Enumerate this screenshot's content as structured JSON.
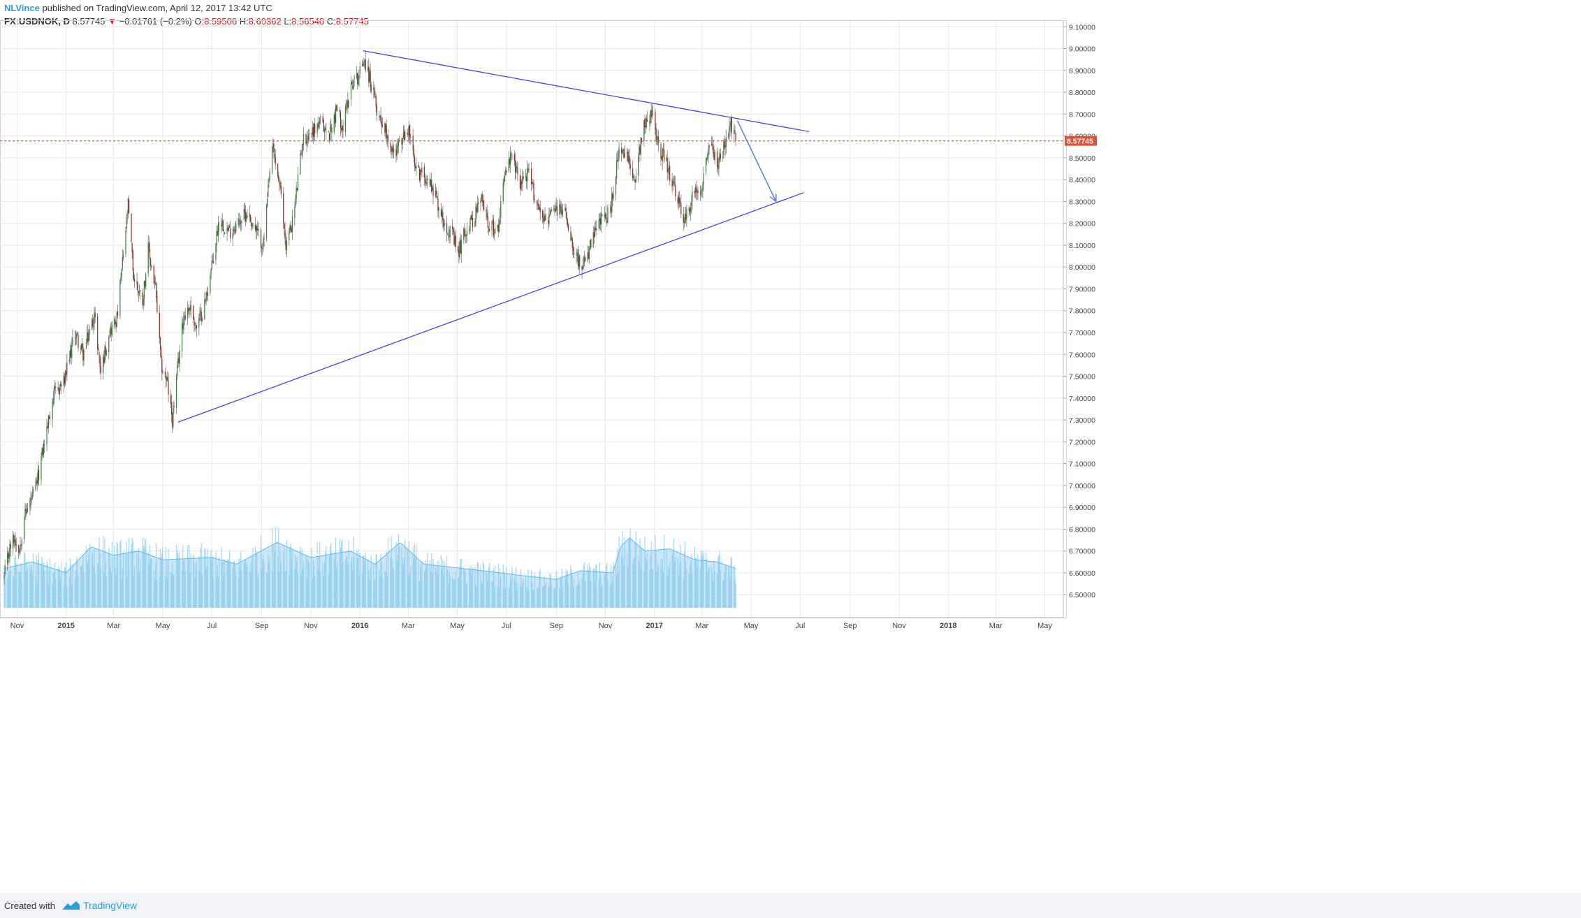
{
  "header": {
    "author": "NLVince",
    "published": "published on TradingView.com, April 12, 2017 13:42 UTC",
    "symbol": "FX:USDNOK, D",
    "last": "8.57745",
    "change_arrow": "▼",
    "change": "−0.01761 (−0.2%)",
    "o_label": "O:",
    "o_value": "8.59506",
    "h_label": "H:",
    "h_value": "8.60362",
    "l_label": "L:",
    "l_value": "8.56540",
    "c_label": "C:",
    "c_value": "8.57745"
  },
  "footer": {
    "created_with": "Created with",
    "brand": "TradingView"
  },
  "colors": {
    "up": "#3b7a3b",
    "down": "#8b2e22",
    "wick": "#777777",
    "volume": "#5bb8e6",
    "volume_ma": "#8fcdf0",
    "trendline": "#4444dd",
    "arrow": "#5b7fd6",
    "price_line": "#e0552a",
    "grid": "#e8e8e8"
  },
  "chart_data": {
    "type": "candlestick",
    "title": "",
    "ylim": [
      6.44,
      9.12
    ],
    "y_ticks": [
      "9.10000",
      "9.00000",
      "8.90000",
      "8.80000",
      "8.70000",
      "8.60000",
      "8.50000",
      "8.40000",
      "8.30000",
      "8.20000",
      "8.10000",
      "8.00000",
      "7.90000",
      "7.80000",
      "7.70000",
      "7.60000",
      "7.50000",
      "7.40000",
      "7.30000",
      "7.20000",
      "7.10000",
      "7.00000",
      "6.90000",
      "6.80000",
      "6.70000",
      "6.60000",
      "6.50000"
    ],
    "x_ticks": [
      {
        "label": "Nov",
        "date": "2014-11-01",
        "bold": false
      },
      {
        "label": "2015",
        "date": "2015-01-01",
        "bold": true
      },
      {
        "label": "Mar",
        "date": "2015-03-01",
        "bold": false
      },
      {
        "label": "May",
        "date": "2015-05-01",
        "bold": false
      },
      {
        "label": "Jul",
        "date": "2015-07-01",
        "bold": false
      },
      {
        "label": "Sep",
        "date": "2015-09-01",
        "bold": false
      },
      {
        "label": "Nov",
        "date": "2015-11-01",
        "bold": false
      },
      {
        "label": "2016",
        "date": "2016-01-01",
        "bold": true
      },
      {
        "label": "Mar",
        "date": "2016-03-01",
        "bold": false
      },
      {
        "label": "May",
        "date": "2016-05-01",
        "bold": false
      },
      {
        "label": "Jul",
        "date": "2016-07-01",
        "bold": false
      },
      {
        "label": "Sep",
        "date": "2016-09-01",
        "bold": false
      },
      {
        "label": "Nov",
        "date": "2016-11-01",
        "bold": false
      },
      {
        "label": "2017",
        "date": "2017-01-01",
        "bold": true
      },
      {
        "label": "Mar",
        "date": "2017-03-01",
        "bold": false
      },
      {
        "label": "May",
        "date": "2017-05-01",
        "bold": false
      },
      {
        "label": "Jul",
        "date": "2017-07-01",
        "bold": false
      },
      {
        "label": "Sep",
        "date": "2017-09-01",
        "bold": false
      },
      {
        "label": "Nov",
        "date": "2017-11-01",
        "bold": false
      },
      {
        "label": "2018",
        "date": "2018-01-01",
        "bold": true
      },
      {
        "label": "Mar",
        "date": "2018-03-01",
        "bold": false
      },
      {
        "label": "May",
        "date": "2018-05-01",
        "bold": false
      }
    ],
    "price_path": [
      [
        "2014-10-16",
        6.58
      ],
      [
        "2014-10-22",
        6.7
      ],
      [
        "2014-10-28",
        6.76
      ],
      [
        "2014-11-04",
        6.71
      ],
      [
        "2014-11-10",
        6.86
      ],
      [
        "2014-11-24",
        6.98
      ],
      [
        "2014-12-05",
        7.2
      ],
      [
        "2014-12-16",
        7.41
      ],
      [
        "2014-12-30",
        7.48
      ],
      [
        "2015-01-12",
        7.7
      ],
      [
        "2015-01-22",
        7.6
      ],
      [
        "2015-02-05",
        7.78
      ],
      [
        "2015-02-13",
        7.52
      ],
      [
        "2015-02-23",
        7.7
      ],
      [
        "2015-03-05",
        7.76
      ],
      [
        "2015-03-12",
        8.02
      ],
      [
        "2015-03-19",
        8.28
      ],
      [
        "2015-03-26",
        7.95
      ],
      [
        "2015-04-06",
        7.85
      ],
      [
        "2015-04-13",
        8.08
      ],
      [
        "2015-04-22",
        7.9
      ],
      [
        "2015-04-29",
        7.55
      ],
      [
        "2015-05-06",
        7.48
      ],
      [
        "2015-05-13",
        7.3
      ],
      [
        "2015-05-19",
        7.52
      ],
      [
        "2015-05-27",
        7.78
      ],
      [
        "2015-06-04",
        7.82
      ],
      [
        "2015-06-12",
        7.72
      ],
      [
        "2015-06-22",
        7.83
      ],
      [
        "2015-07-02",
        8.02
      ],
      [
        "2015-07-10",
        8.22
      ],
      [
        "2015-07-23",
        8.16
      ],
      [
        "2015-08-04",
        8.21
      ],
      [
        "2015-08-14",
        8.25
      ],
      [
        "2015-08-24",
        8.17
      ],
      [
        "2015-09-03",
        8.1
      ],
      [
        "2015-09-14",
        8.55
      ],
      [
        "2015-09-23",
        8.38
      ],
      [
        "2015-10-01",
        8.1
      ],
      [
        "2015-10-10",
        8.22
      ],
      [
        "2015-10-22",
        8.58
      ],
      [
        "2015-11-02",
        8.62
      ],
      [
        "2015-11-13",
        8.66
      ],
      [
        "2015-11-23",
        8.6
      ],
      [
        "2015-12-03",
        8.72
      ],
      [
        "2015-12-11",
        8.64
      ],
      [
        "2015-12-21",
        8.84
      ],
      [
        "2015-12-31",
        8.88
      ],
      [
        "2016-01-06",
        8.96
      ],
      [
        "2016-01-14",
        8.85
      ],
      [
        "2016-01-22",
        8.72
      ],
      [
        "2016-02-03",
        8.62
      ],
      [
        "2016-02-11",
        8.52
      ],
      [
        "2016-02-22",
        8.58
      ],
      [
        "2016-03-02",
        8.63
      ],
      [
        "2016-03-10",
        8.44
      ],
      [
        "2016-03-22",
        8.42
      ],
      [
        "2016-04-01",
        8.36
      ],
      [
        "2016-04-12",
        8.23
      ],
      [
        "2016-04-25",
        8.14
      ],
      [
        "2016-05-02",
        8.06
      ],
      [
        "2016-05-10",
        8.16
      ],
      [
        "2016-05-19",
        8.21
      ],
      [
        "2016-05-31",
        8.31
      ],
      [
        "2016-06-09",
        8.2
      ],
      [
        "2016-06-20",
        8.16
      ],
      [
        "2016-06-28",
        8.42
      ],
      [
        "2016-07-07",
        8.5
      ],
      [
        "2016-07-18",
        8.39
      ],
      [
        "2016-07-28",
        8.43
      ],
      [
        "2016-08-08",
        8.29
      ],
      [
        "2016-08-19",
        8.21
      ],
      [
        "2016-08-31",
        8.26
      ],
      [
        "2016-09-12",
        8.26
      ],
      [
        "2016-09-22",
        8.1
      ],
      [
        "2016-10-03",
        7.98
      ],
      [
        "2016-10-14",
        8.1
      ],
      [
        "2016-10-25",
        8.21
      ],
      [
        "2016-11-07",
        8.25
      ],
      [
        "2016-11-17",
        8.52
      ],
      [
        "2016-11-28",
        8.5
      ],
      [
        "2016-12-07",
        8.4
      ],
      [
        "2016-12-19",
        8.66
      ],
      [
        "2016-12-29",
        8.7
      ],
      [
        "2017-01-06",
        8.56
      ],
      [
        "2017-01-17",
        8.46
      ],
      [
        "2017-01-30",
        8.3
      ],
      [
        "2017-02-08",
        8.21
      ],
      [
        "2017-02-17",
        8.32
      ],
      [
        "2017-03-01",
        8.38
      ],
      [
        "2017-03-10",
        8.58
      ],
      [
        "2017-03-20",
        8.47
      ],
      [
        "2017-03-29",
        8.55
      ],
      [
        "2017-04-06",
        8.65
      ],
      [
        "2017-04-12",
        8.577
      ]
    ],
    "annotations": {
      "last_price": 8.57745,
      "last_price_label": "8.57745",
      "resistance_line": {
        "from": [
          "2016-01-05",
          8.99
        ],
        "to": [
          "2017-07-12",
          8.62
        ]
      },
      "support_line": {
        "from": [
          "2015-05-20",
          7.29
        ],
        "to": [
          "2017-07-05",
          8.34
        ]
      },
      "projection_arrow": {
        "from": [
          "2017-04-14",
          8.67
        ],
        "to": [
          "2017-06-01",
          8.3
        ]
      }
    },
    "volume": {
      "scale_max": 7.1,
      "scale_base": 6.44,
      "note_levels": [
        [
          "2014-10-16",
          6.62
        ],
        [
          "2014-11-20",
          6.65
        ],
        [
          "2015-01-01",
          6.6
        ],
        [
          "2015-02-01",
          6.72
        ],
        [
          "2015-03-01",
          6.68
        ],
        [
          "2015-04-01",
          6.7
        ],
        [
          "2015-05-01",
          6.66
        ],
        [
          "2015-07-01",
          6.67
        ],
        [
          "2015-08-01",
          6.64
        ],
        [
          "2015-09-20",
          6.74
        ],
        [
          "2015-11-01",
          6.67
        ],
        [
          "2015-12-20",
          6.7
        ],
        [
          "2016-01-20",
          6.64
        ],
        [
          "2016-02-20",
          6.74
        ],
        [
          "2016-03-20",
          6.64
        ],
        [
          "2016-06-01",
          6.61
        ],
        [
          "2016-07-15",
          6.59
        ],
        [
          "2016-09-01",
          6.57
        ],
        [
          "2016-10-01",
          6.61
        ],
        [
          "2016-11-10",
          6.6
        ],
        [
          "2016-11-20",
          6.72
        ],
        [
          "2016-12-01",
          6.76
        ],
        [
          "2016-12-20",
          6.7
        ],
        [
          "2017-01-20",
          6.71
        ],
        [
          "2017-02-20",
          6.66
        ],
        [
          "2017-03-20",
          6.65
        ],
        [
          "2017-04-12",
          6.62
        ]
      ]
    }
  }
}
